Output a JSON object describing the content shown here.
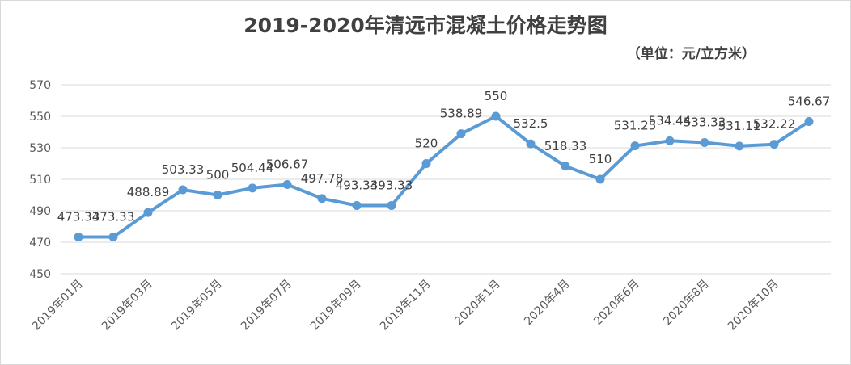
{
  "chart_data": {
    "type": "line",
    "title": "2019-2020年清远市混凝土价格走势图",
    "subtitle": "（单位：元/立方米）",
    "xlabel": "",
    "ylabel": "",
    "ylim": [
      450,
      570
    ],
    "yticks": [
      "570",
      "550",
      "530",
      "510",
      "490",
      "470",
      "450"
    ],
    "grid": true,
    "legend": "none",
    "color": "#5b9bd5",
    "tick_labels": [
      "2019年01月",
      "2019年03月",
      "2019年05月",
      "2019年07月",
      "2019年09月",
      "2019年11月",
      "2020年1月",
      "2020年4月",
      "2020年6月",
      "2020年8月",
      "2020年10月"
    ],
    "values": [
      473.33,
      473.33,
      488.89,
      503.33,
      500,
      504.44,
      506.67,
      497.78,
      493.33,
      493.33,
      520,
      538.89,
      550,
      532.5,
      518.33,
      510,
      531.25,
      534.44,
      533.33,
      531.11,
      532.22,
      546.67
    ],
    "labels": [
      "473.33",
      "473.33",
      "488.89",
      "503.33",
      "500",
      "504.44",
      "506.67",
      "497.78",
      "493.33",
      "493.33",
      "520",
      "538.89",
      "550",
      "532.5",
      "518.33",
      "510",
      "531.25",
      "534.44",
      "533.33",
      "531.11",
      "532.22",
      "546.67"
    ]
  }
}
